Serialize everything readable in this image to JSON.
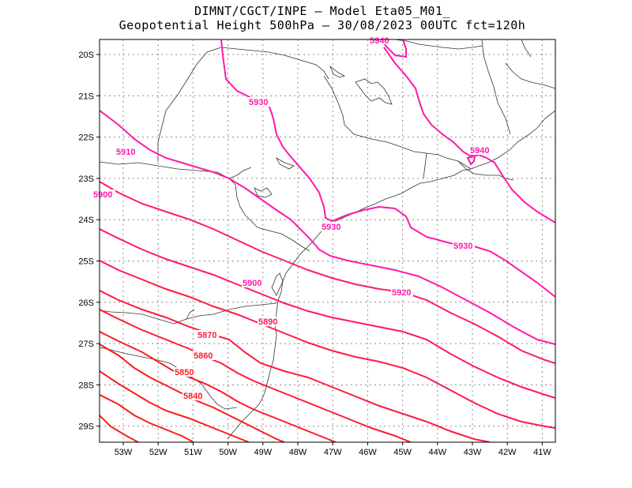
{
  "title": {
    "line1": "DIMNT/CGCT/INPE –  Model Eta05_M01_",
    "line2": "Geopotential Height 500hPa –  30/08/2023 00UTC fct=120h"
  },
  "axes": {
    "lat_labels": [
      "20S",
      "21S",
      "22S",
      "23S",
      "24S",
      "25S",
      "26S",
      "27S",
      "28S",
      "29S"
    ],
    "lon_labels": [
      "53W",
      "52W",
      "51W",
      "50W",
      "49W",
      "48W",
      "47W",
      "46W",
      "45W",
      "44W",
      "43W",
      "42W",
      "41W"
    ]
  },
  "colors": {
    "high": "#ff1aa8",
    "mid": "#ff1a4a",
    "low": "#ff1a1a",
    "coast": "#333333",
    "grid": "#8c8c8c"
  },
  "contour_labels": [
    {
      "text": "5940",
      "key": "c5940_top"
    },
    {
      "text": "5930",
      "key": "c5930_a"
    },
    {
      "text": "5940",
      "key": "c5940_right"
    },
    {
      "text": "5910",
      "key": "c5910"
    },
    {
      "text": "5900",
      "key": "c5900_left"
    },
    {
      "text": "5930",
      "key": "c5930_b"
    },
    {
      "text": "5930",
      "key": "c5930_c"
    },
    {
      "text": "5900",
      "key": "c5900_mid"
    },
    {
      "text": "5920",
      "key": "c5920"
    },
    {
      "text": "5890",
      "key": "c5890"
    },
    {
      "text": "5870",
      "key": "c5870"
    },
    {
      "text": "5860",
      "key": "c5860"
    },
    {
      "text": "5850",
      "key": "c5850"
    },
    {
      "text": "5840",
      "key": "c5840"
    }
  ]
}
